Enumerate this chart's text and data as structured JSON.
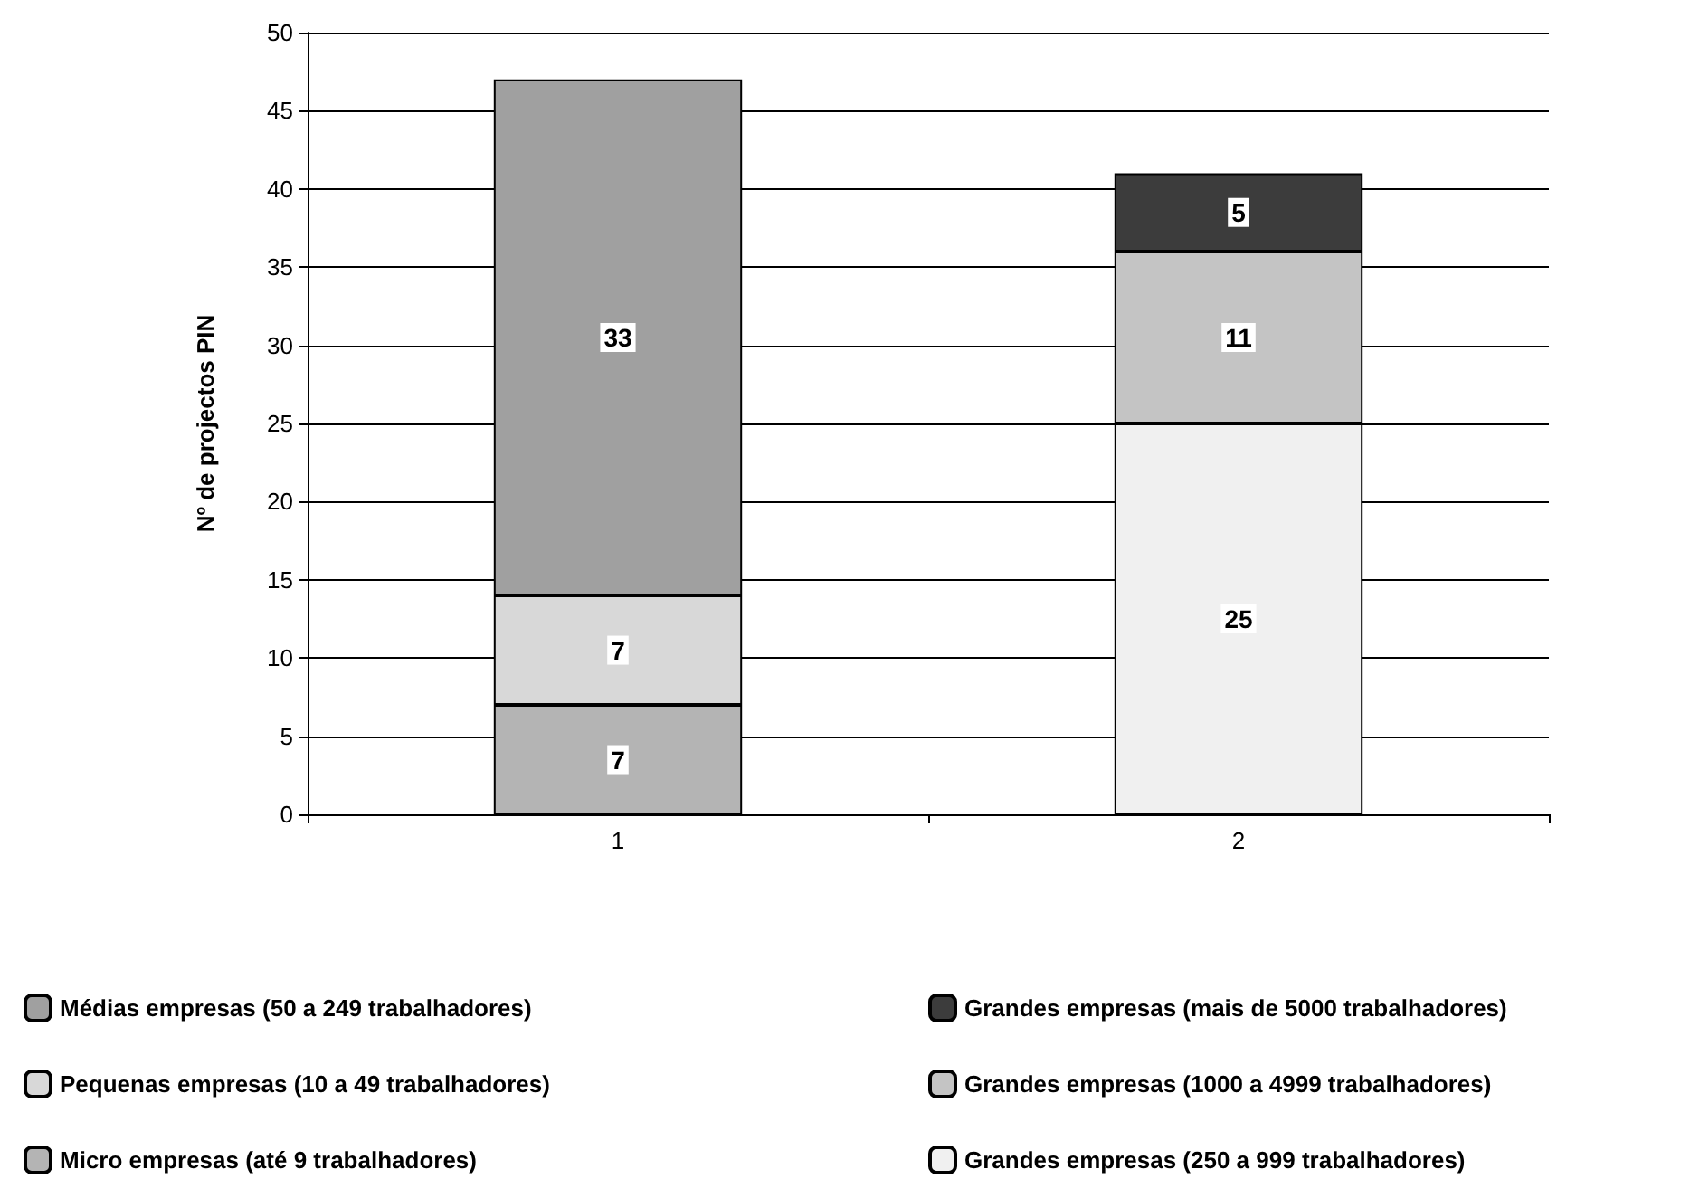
{
  "chart_data": {
    "type": "bar",
    "stacked": true,
    "ylabel": "Nº de projectos PIN",
    "categories": [
      "1",
      "2"
    ],
    "ylim": [
      0,
      50
    ],
    "yticks": [
      0,
      5,
      10,
      15,
      20,
      25,
      30,
      35,
      40,
      45,
      50
    ],
    "grid": "y",
    "legend": "bottom",
    "data_labels": true,
    "series": [
      {
        "name": "Micro empresas (até 9 trabalhadores)",
        "color": "#b4b4b4",
        "values": [
          7,
          null
        ]
      },
      {
        "name": "Pequenas empresas (10 a 49 trabalhadores)",
        "color": "#d8d8d8",
        "values": [
          7,
          null
        ]
      },
      {
        "name": "Médias empresas (50 a 249 trabalhadores)",
        "color": "#a0a0a0",
        "values": [
          33,
          null
        ]
      },
      {
        "name": "Grandes empresas (250 a 999 trabalhadores)",
        "color": "#f0f0f0",
        "values": [
          null,
          25
        ]
      },
      {
        "name": "Grandes empresas (1000 a 4999 trabalhadores)",
        "color": "#c4c4c4",
        "values": [
          null,
          11
        ]
      },
      {
        "name": "Grandes empresas (mais de 5000 trabalhadores)",
        "color": "#3c3c3c",
        "values": [
          null,
          5
        ]
      }
    ]
  }
}
